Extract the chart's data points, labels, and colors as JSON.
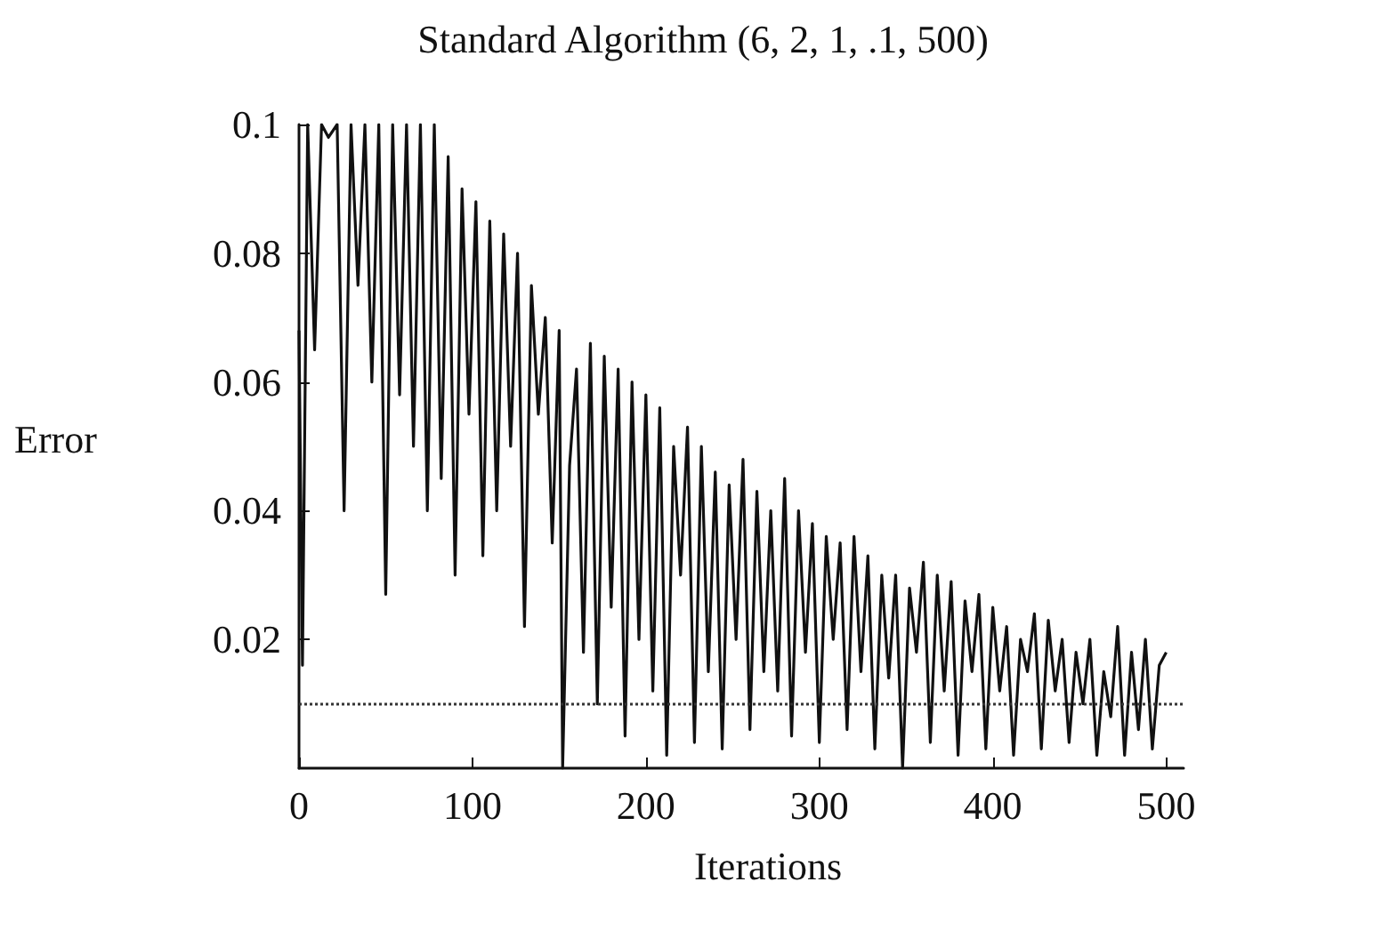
{
  "chart_data": {
    "type": "line",
    "title": "Standard Algorithm (6, 2, 1, .1, 500)",
    "xlabel": "Iterations",
    "ylabel": "Error",
    "xlim": [
      0,
      510
    ],
    "xticks": [
      0,
      100,
      200,
      300,
      400,
      500
    ],
    "ylim": [
      0,
      0.1
    ],
    "yticks": [
      0.02,
      0.04,
      0.06,
      0.08,
      0.1
    ],
    "grid": false,
    "marker": "none",
    "line_style": "solid",
    "ref_lines": [
      {
        "axis": "y",
        "value": 0.01,
        "color": "#333333",
        "line_style": "dotted"
      }
    ],
    "series": [
      {
        "color": "#111111",
        "x": [
          0,
          2,
          5,
          9,
          13,
          17,
          22,
          26,
          30,
          34,
          38,
          42,
          46,
          50,
          54,
          58,
          62,
          66,
          70,
          74,
          78,
          82,
          86,
          90,
          94,
          98,
          102,
          106,
          110,
          114,
          118,
          122,
          126,
          130,
          134,
          138,
          142,
          146,
          150,
          152,
          156,
          160,
          164,
          168,
          172,
          176,
          180,
          184,
          188,
          192,
          196,
          200,
          204,
          208,
          212,
          216,
          220,
          224,
          228,
          232,
          236,
          240,
          244,
          248,
          252,
          256,
          260,
          264,
          268,
          272,
          276,
          280,
          284,
          288,
          292,
          296,
          300,
          304,
          308,
          312,
          316,
          320,
          324,
          328,
          332,
          336,
          340,
          344,
          348,
          352,
          356,
          360,
          364,
          368,
          372,
          376,
          380,
          384,
          388,
          392,
          396,
          400,
          404,
          408,
          412,
          416,
          420,
          424,
          428,
          432,
          436,
          440,
          444,
          448,
          452,
          456,
          460,
          464,
          468,
          472,
          476,
          480,
          484,
          488,
          492,
          496,
          500
        ],
        "values": [
          0.068,
          0.016,
          0.1,
          0.065,
          0.1,
          0.098,
          0.1,
          0.04,
          0.1,
          0.075,
          0.1,
          0.06,
          0.1,
          0.027,
          0.1,
          0.058,
          0.1,
          0.05,
          0.1,
          0.04,
          0.1,
          0.045,
          0.095,
          0.03,
          0.09,
          0.055,
          0.088,
          0.033,
          0.085,
          0.04,
          0.083,
          0.05,
          0.08,
          0.022,
          0.075,
          0.055,
          0.07,
          0.035,
          0.068,
          0.0,
          0.047,
          0.062,
          0.018,
          0.066,
          0.01,
          0.064,
          0.025,
          0.062,
          0.005,
          0.06,
          0.02,
          0.058,
          0.012,
          0.056,
          0.002,
          0.05,
          0.03,
          0.053,
          0.004,
          0.05,
          0.015,
          0.046,
          0.003,
          0.044,
          0.02,
          0.048,
          0.006,
          0.043,
          0.015,
          0.04,
          0.012,
          0.045,
          0.005,
          0.04,
          0.018,
          0.038,
          0.004,
          0.036,
          0.02,
          0.035,
          0.006,
          0.036,
          0.015,
          0.033,
          0.003,
          0.03,
          0.014,
          0.03,
          0.0,
          0.028,
          0.018,
          0.032,
          0.004,
          0.03,
          0.012,
          0.029,
          0.002,
          0.026,
          0.015,
          0.027,
          0.003,
          0.025,
          0.012,
          0.022,
          0.002,
          0.02,
          0.015,
          0.024,
          0.003,
          0.023,
          0.012,
          0.02,
          0.004,
          0.018,
          0.01,
          0.02,
          0.002,
          0.015,
          0.008,
          0.022,
          0.002,
          0.018,
          0.006,
          0.02,
          0.003,
          0.016,
          0.018
        ]
      }
    ]
  }
}
